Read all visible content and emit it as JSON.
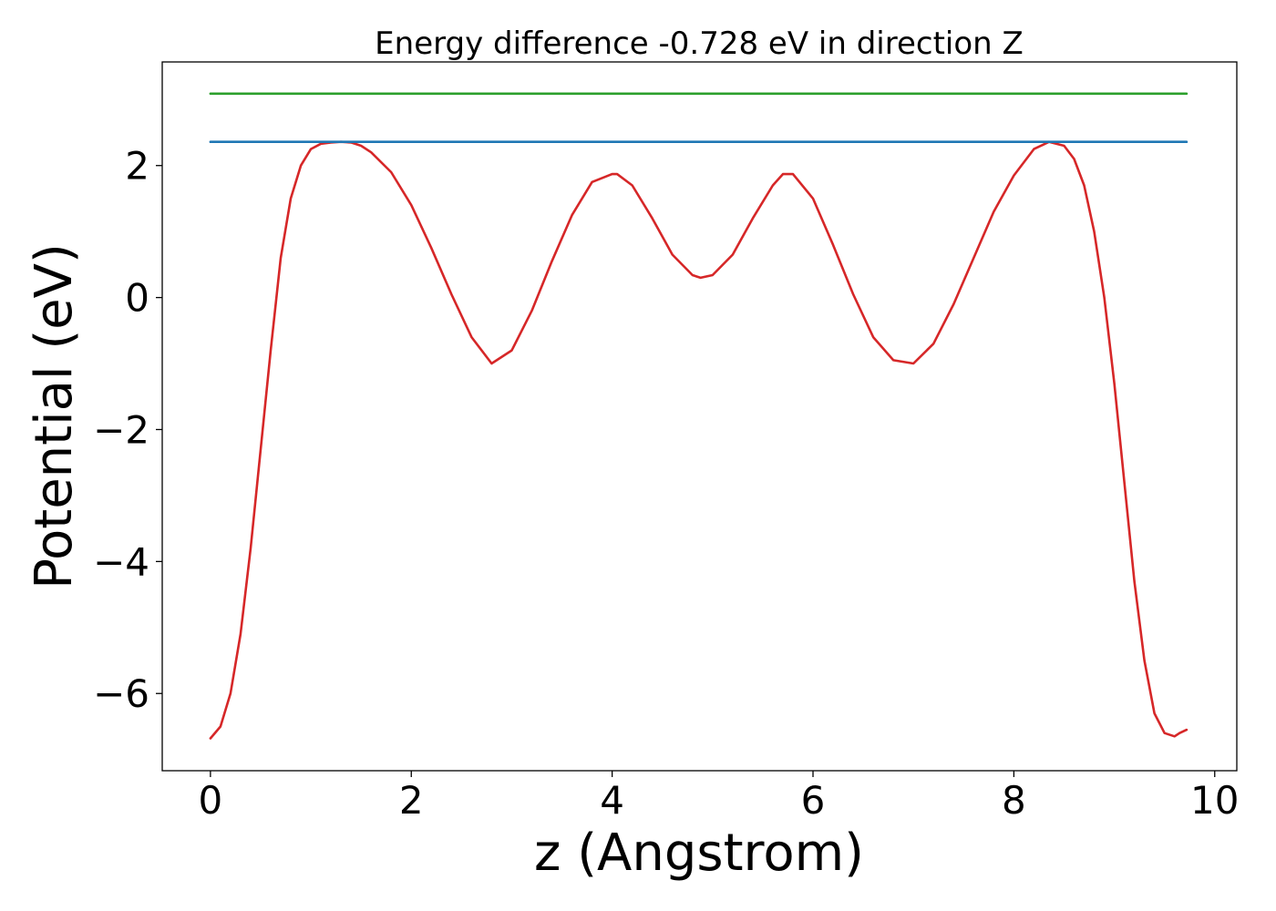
{
  "chart_data": {
    "type": "line",
    "title": "Energy difference -0.728 eV in direction Z",
    "xlabel": "z (Angstrom)",
    "ylabel": "Potential (eV)",
    "xlim": [
      -0.48,
      10.22
    ],
    "ylim": [
      -7.17,
      3.57
    ],
    "xticks": [
      0,
      2,
      4,
      6,
      8,
      10
    ],
    "xtick_labels": [
      "0",
      "2",
      "4",
      "6",
      "8",
      "10"
    ],
    "yticks": [
      2,
      0,
      -2,
      -4,
      -6
    ],
    "ytick_labels": [
      "2",
      "0",
      "−2",
      "−4",
      "−6"
    ],
    "grid": false,
    "series": [
      {
        "color": "#d62728",
        "x": [
          0.0,
          0.1,
          0.2,
          0.3,
          0.4,
          0.5,
          0.6,
          0.7,
          0.8,
          0.9,
          1.0,
          1.1,
          1.2,
          1.3,
          1.4,
          1.5,
          1.6,
          1.8,
          2.0,
          2.2,
          2.4,
          2.6,
          2.8,
          3.0,
          3.2,
          3.4,
          3.6,
          3.8,
          4.0,
          4.05,
          4.2,
          4.4,
          4.6,
          4.8,
          4.88,
          5.0,
          5.2,
          5.4,
          5.6,
          5.7,
          5.8,
          6.0,
          6.2,
          6.4,
          6.6,
          6.8,
          7.0,
          7.2,
          7.4,
          7.6,
          7.8,
          8.0,
          8.2,
          8.35,
          8.5,
          8.6,
          8.7,
          8.8,
          8.9,
          9.0,
          9.1,
          9.2,
          9.3,
          9.4,
          9.5,
          9.6,
          9.65,
          9.72
        ],
        "y": [
          -6.68,
          -6.5,
          -6.0,
          -5.1,
          -3.8,
          -2.3,
          -0.8,
          0.6,
          1.5,
          2.0,
          2.25,
          2.33,
          2.35,
          2.36,
          2.35,
          2.3,
          2.2,
          1.9,
          1.4,
          0.75,
          0.05,
          -0.6,
          -1.0,
          -0.8,
          -0.2,
          0.55,
          1.25,
          1.75,
          1.87,
          1.87,
          1.7,
          1.2,
          0.65,
          0.34,
          0.3,
          0.34,
          0.65,
          1.2,
          1.7,
          1.87,
          1.87,
          1.5,
          0.8,
          0.05,
          -0.6,
          -0.95,
          -1.0,
          -0.7,
          -0.1,
          0.6,
          1.3,
          1.85,
          2.25,
          2.36,
          2.3,
          2.1,
          1.7,
          1.0,
          0.0,
          -1.3,
          -2.8,
          -4.3,
          -5.5,
          -6.3,
          -6.6,
          -6.65,
          -6.6,
          -6.55
        ]
      },
      {
        "color": "#1f77b4",
        "x": [
          0.0,
          9.72
        ],
        "y": [
          2.36,
          2.36
        ]
      },
      {
        "color": "#2ca02c",
        "x": [
          0.0,
          9.72
        ],
        "y": [
          3.09,
          3.09
        ]
      }
    ]
  }
}
